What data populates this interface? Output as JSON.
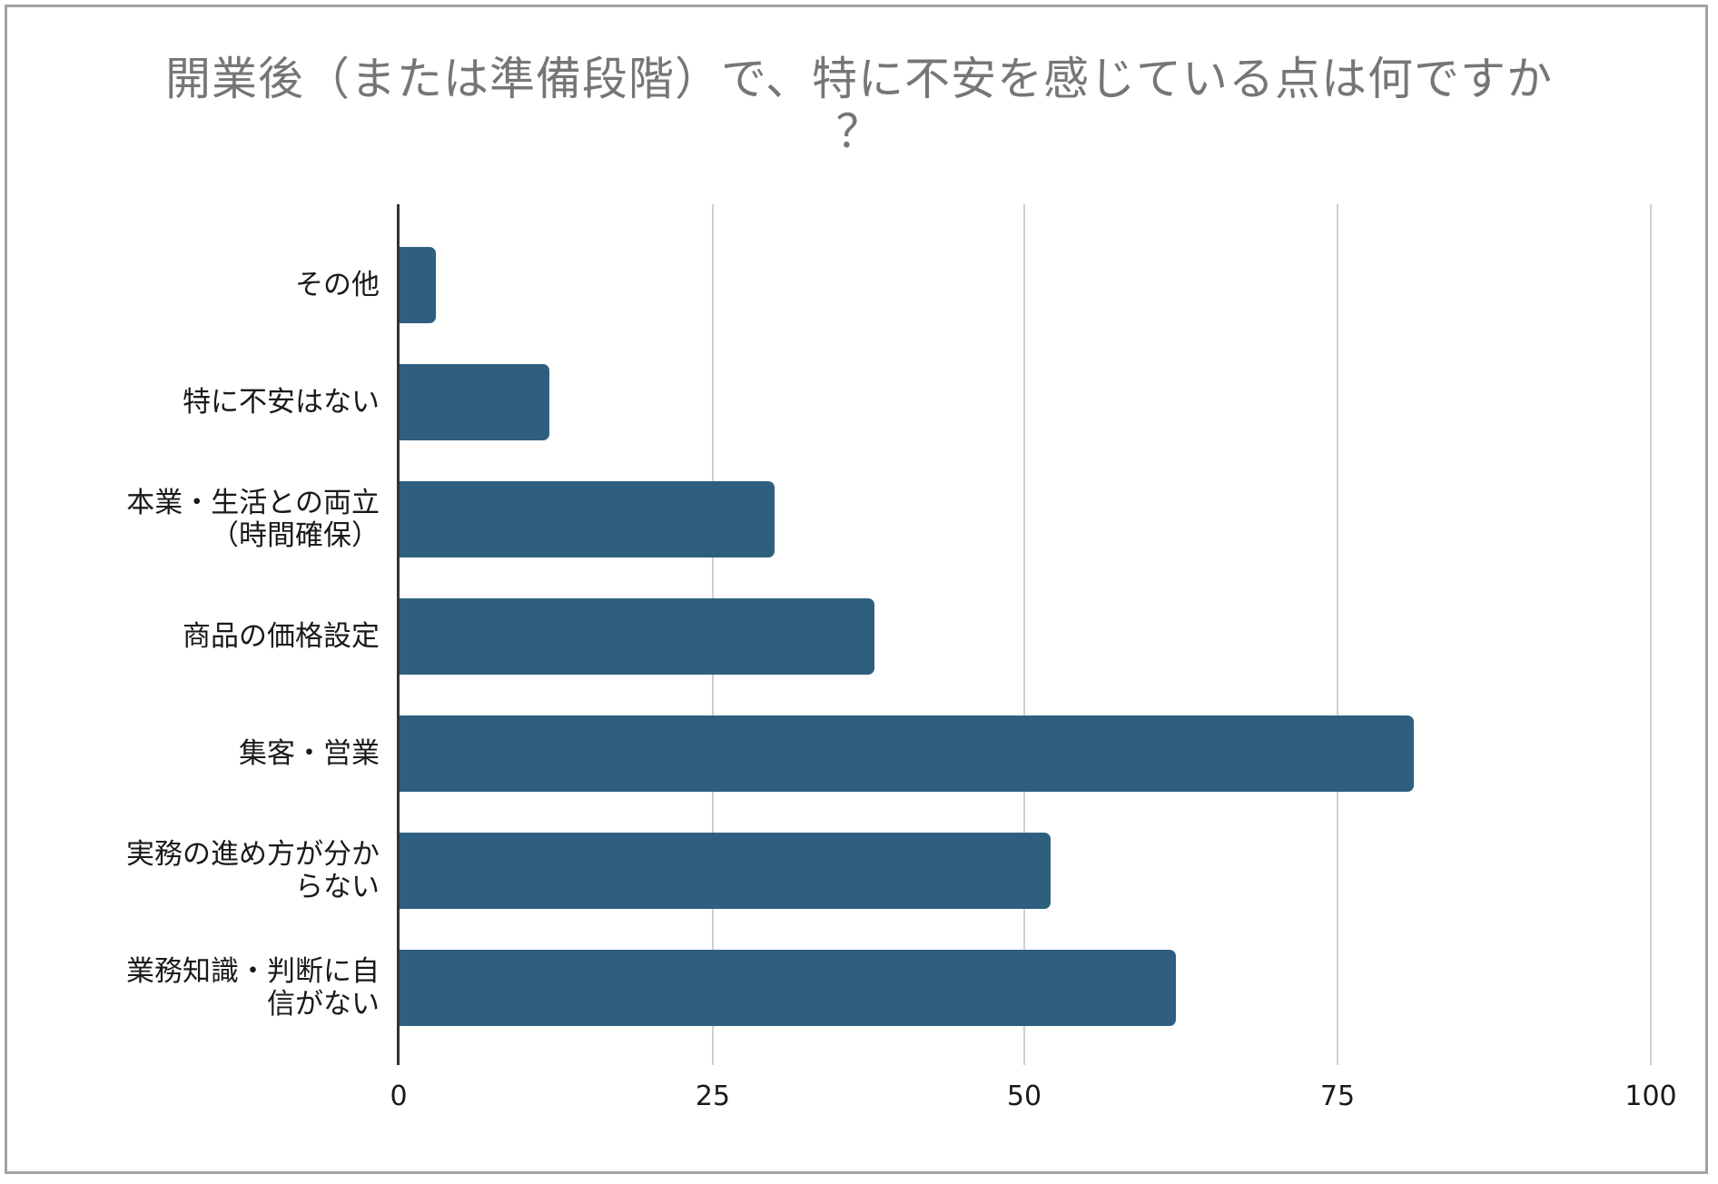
{
  "title": {
    "line1": "開業後（または準備段階）で、特に不安を感じている点は何ですか",
    "line2": "？"
  },
  "colors": {
    "bar": "#2f5f7f",
    "grid": "#cfcfcf",
    "axis": "#333333",
    "title": "#767676",
    "frame": "#a3a3a3"
  },
  "x_axis": {
    "ticks": [
      "0",
      "25",
      "50",
      "75",
      "100"
    ]
  },
  "categories": [
    {
      "label_lines": [
        "その他"
      ],
      "value": 3
    },
    {
      "label_lines": [
        "特に不安はない"
      ],
      "value": 12
    },
    {
      "label_lines": [
        "本業・生活との両立",
        "（時間確保）"
      ],
      "value": 30
    },
    {
      "label_lines": [
        "商品の価格設定"
      ],
      "value": 38
    },
    {
      "label_lines": [
        "集客・営業"
      ],
      "value": 81
    },
    {
      "label_lines": [
        "実務の進め方が分か",
        "らない"
      ],
      "value": 52
    },
    {
      "label_lines": [
        "業務知識・判断に自",
        "信がない"
      ],
      "value": 62
    }
  ],
  "chart_data": {
    "type": "bar",
    "orientation": "horizontal",
    "title": "開業後（または準備段階）で、特に不安を感じている点は何ですか？",
    "categories": [
      "その他",
      "特に不安はない",
      "本業・生活との両立（時間確保）",
      "商品の価格設定",
      "集客・営業",
      "実務の進め方が分からない",
      "業務知識・判断に自信がない"
    ],
    "values": [
      3,
      12,
      30,
      38,
      81,
      52,
      62
    ],
    "xlabel": "",
    "ylabel": "",
    "xlim": [
      0,
      100
    ],
    "xticks": [
      0,
      25,
      50,
      75,
      100
    ],
    "grid": "vertical",
    "legend": null
  }
}
